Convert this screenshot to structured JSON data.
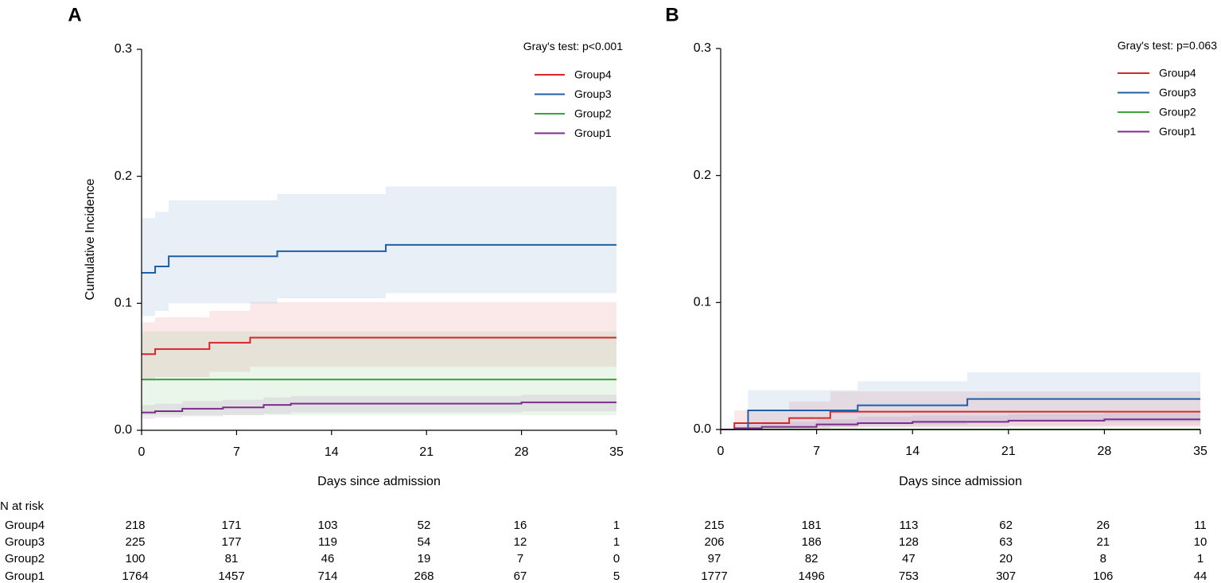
{
  "figure": {
    "risk_table_header": "N at risk",
    "group_order": [
      "Group4",
      "Group3",
      "Group2",
      "Group1"
    ],
    "legend_order": [
      "Group4",
      "Group3",
      "Group2",
      "Group1"
    ],
    "colors": {
      "Group4": "#d62728",
      "Group3": "#1f5fa8",
      "Group2": "#3aa33a",
      "Group1": "#7b2e8e"
    },
    "band_opacity": 0.1
  },
  "chart_data": [
    {
      "type": "line",
      "subtype": "cumulative-incidence-step",
      "panel_label": "A",
      "title": "",
      "annotation": "Gray's test:  p<0.001",
      "xlabel": "Days since admission",
      "ylabel": "Cumulative Incidence",
      "xlim": [
        0,
        35
      ],
      "ylim": [
        0,
        0.3
      ],
      "xticks": [
        0,
        7,
        14,
        21,
        28,
        35
      ],
      "yticks": [
        0.0,
        0.1,
        0.2,
        0.3
      ],
      "ytick_labels": [
        "0.0",
        "0.1",
        "0.2",
        "0.3"
      ],
      "show_y_axis": true,
      "legend_position": "top-right",
      "series": [
        {
          "name": "Group4",
          "x": [
            0,
            1,
            5,
            8,
            35
          ],
          "y": [
            0.06,
            0.064,
            0.069,
            0.073,
            0.073
          ],
          "lower": [
            0.039,
            0.042,
            0.046,
            0.05,
            0.05
          ],
          "upper": [
            0.085,
            0.089,
            0.094,
            0.101,
            0.101
          ]
        },
        {
          "name": "Group3",
          "x": [
            0,
            1,
            2,
            10,
            18,
            35
          ],
          "y": [
            0.124,
            0.129,
            0.137,
            0.141,
            0.146,
            0.146
          ],
          "lower": [
            0.09,
            0.094,
            0.1,
            0.104,
            0.108,
            0.108
          ],
          "upper": [
            0.167,
            0.172,
            0.181,
            0.186,
            0.192,
            0.192
          ]
        },
        {
          "name": "Group2",
          "x": [
            0,
            35
          ],
          "y": [
            0.04,
            0.04
          ],
          "lower": [
            0.012,
            0.012
          ],
          "upper": [
            0.078,
            0.078
          ]
        },
        {
          "name": "Group1",
          "x": [
            0,
            1,
            3,
            6,
            9,
            11,
            21,
            28,
            35
          ],
          "y": [
            0.014,
            0.015,
            0.017,
            0.018,
            0.02,
            0.021,
            0.021,
            0.022,
            0.022
          ],
          "lower": [
            0.009,
            0.01,
            0.011,
            0.012,
            0.013,
            0.014,
            0.014,
            0.015,
            0.015
          ],
          "upper": [
            0.02,
            0.021,
            0.023,
            0.024,
            0.026,
            0.027,
            0.027,
            0.028,
            0.028
          ]
        }
      ],
      "risk_table": {
        "times": [
          0,
          7,
          14,
          21,
          28,
          35
        ],
        "rows": [
          {
            "group": "Group4",
            "values": [
              "218",
              "171",
              "103",
              "52",
              "16",
              "1"
            ]
          },
          {
            "group": "Group3",
            "values": [
              "225",
              "177",
              "119",
              "54",
              "12",
              "1"
            ]
          },
          {
            "group": "Group2",
            "values": [
              "100",
              "81",
              "46",
              "19",
              "7",
              "0"
            ]
          },
          {
            "group": "Group1",
            "values": [
              "1764",
              "1457",
              "714",
              "268",
              "67",
              "5"
            ]
          }
        ]
      }
    },
    {
      "type": "line",
      "subtype": "cumulative-incidence-step",
      "panel_label": "B",
      "title": "",
      "annotation": "Gray's test:  p=0.063",
      "xlabel": "Days since admission",
      "ylabel": "",
      "xlim": [
        0,
        35
      ],
      "ylim": [
        0,
        0.3
      ],
      "xticks": [
        0,
        7,
        14,
        21,
        28,
        35
      ],
      "yticks": [
        0.0,
        0.1,
        0.2,
        0.3
      ],
      "ytick_labels": [
        "0.0",
        "0.1",
        "0.2",
        "0.3"
      ],
      "show_y_axis": true,
      "legend_position": "top-right",
      "series": [
        {
          "name": "Group4",
          "x": [
            0,
            1,
            5,
            8,
            35
          ],
          "y": [
            0,
            0.005,
            0.009,
            0.014,
            0.014
          ],
          "lower": [
            0,
            0,
            0,
            0.002,
            0.002
          ],
          "upper": [
            0,
            0.015,
            0.022,
            0.03,
            0.03
          ]
        },
        {
          "name": "Group3",
          "x": [
            0,
            2,
            10,
            18,
            35
          ],
          "y": [
            0,
            0.015,
            0.019,
            0.024,
            0.024
          ],
          "lower": [
            0,
            0.002,
            0.004,
            0.006,
            0.006
          ],
          "upper": [
            0,
            0.031,
            0.038,
            0.045,
            0.045
          ]
        },
        {
          "name": "Group2",
          "x": [
            0,
            35
          ],
          "y": [
            0,
            0
          ],
          "lower": [
            0,
            0
          ],
          "upper": [
            0,
            0
          ]
        },
        {
          "name": "Group1",
          "x": [
            0,
            1,
            3,
            7,
            10,
            14,
            21,
            28,
            35
          ],
          "y": [
            0,
            0.001,
            0.002,
            0.004,
            0.005,
            0.006,
            0.007,
            0.008,
            0.008
          ],
          "lower": [
            0,
            0,
            0,
            0.001,
            0.002,
            0.002,
            0.003,
            0.003,
            0.003
          ],
          "upper": [
            0,
            0.004,
            0.006,
            0.008,
            0.01,
            0.011,
            0.012,
            0.013,
            0.013
          ]
        }
      ],
      "risk_table": {
        "times": [
          0,
          7,
          14,
          21,
          28,
          35
        ],
        "rows": [
          {
            "group": "Group4",
            "values": [
              "215",
              "181",
              "113",
              "62",
              "26",
              "11"
            ]
          },
          {
            "group": "Group3",
            "values": [
              "206",
              "186",
              "128",
              "63",
              "21",
              "10"
            ]
          },
          {
            "group": "Group2",
            "values": [
              "97",
              "82",
              "47",
              "20",
              "8",
              "1"
            ]
          },
          {
            "group": "Group1",
            "values": [
              "1777",
              "1496",
              "753",
              "307",
              "106",
              "44"
            ]
          }
        ]
      }
    }
  ]
}
